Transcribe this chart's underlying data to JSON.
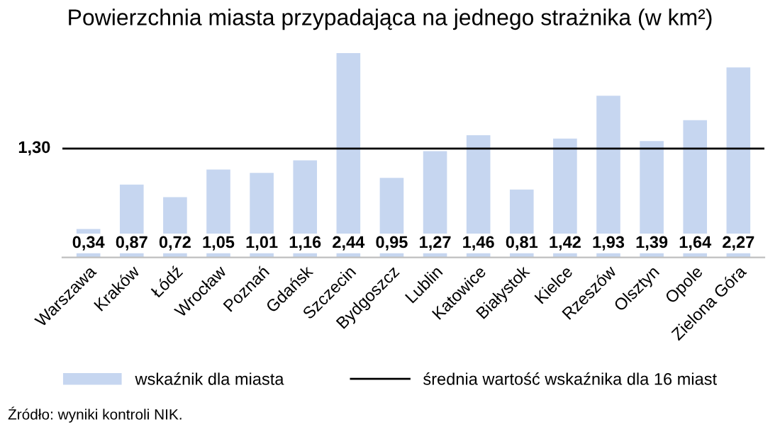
{
  "chart_data": {
    "type": "bar",
    "title": "Powierzchnia miasta przypadająca na jednego strażnika (w km²)",
    "categories": [
      "Warszawa",
      "Kraków",
      "Łódź",
      "Wrocław",
      "Poznań",
      "Gdańsk",
      "Szczecin",
      "Bydgoszcz",
      "Lublin",
      "Katowice",
      "Białystok",
      "Kielce",
      "Rzeszów",
      "Olsztyn",
      "Opole",
      "Zielona Góra"
    ],
    "series": [
      {
        "name": "wskaźnik dla miasta",
        "color": "#c6d6f0",
        "values": [
          0.34,
          0.87,
          0.72,
          1.05,
          1.01,
          1.16,
          2.44,
          0.95,
          1.27,
          1.46,
          0.81,
          1.42,
          1.93,
          1.39,
          1.64,
          2.27
        ],
        "value_labels": [
          "0,34",
          "0,87",
          "0,72",
          "1,05",
          "1,01",
          "1,16",
          "2,44",
          "0,95",
          "1,27",
          "1,46",
          "0,81",
          "1,42",
          "1,93",
          "1,39",
          "1,64",
          "2,27"
        ]
      }
    ],
    "ref_lines": [
      {
        "axis": "y",
        "value": 1.3,
        "label": "średnia wartość wskaźnika dla 16 miast",
        "color": "#000000"
      }
    ],
    "legend": "bottom",
    "grid": false,
    "annotations": [
      "1,30",
      "Źródło: wyniki kontroli NIK."
    ]
  }
}
